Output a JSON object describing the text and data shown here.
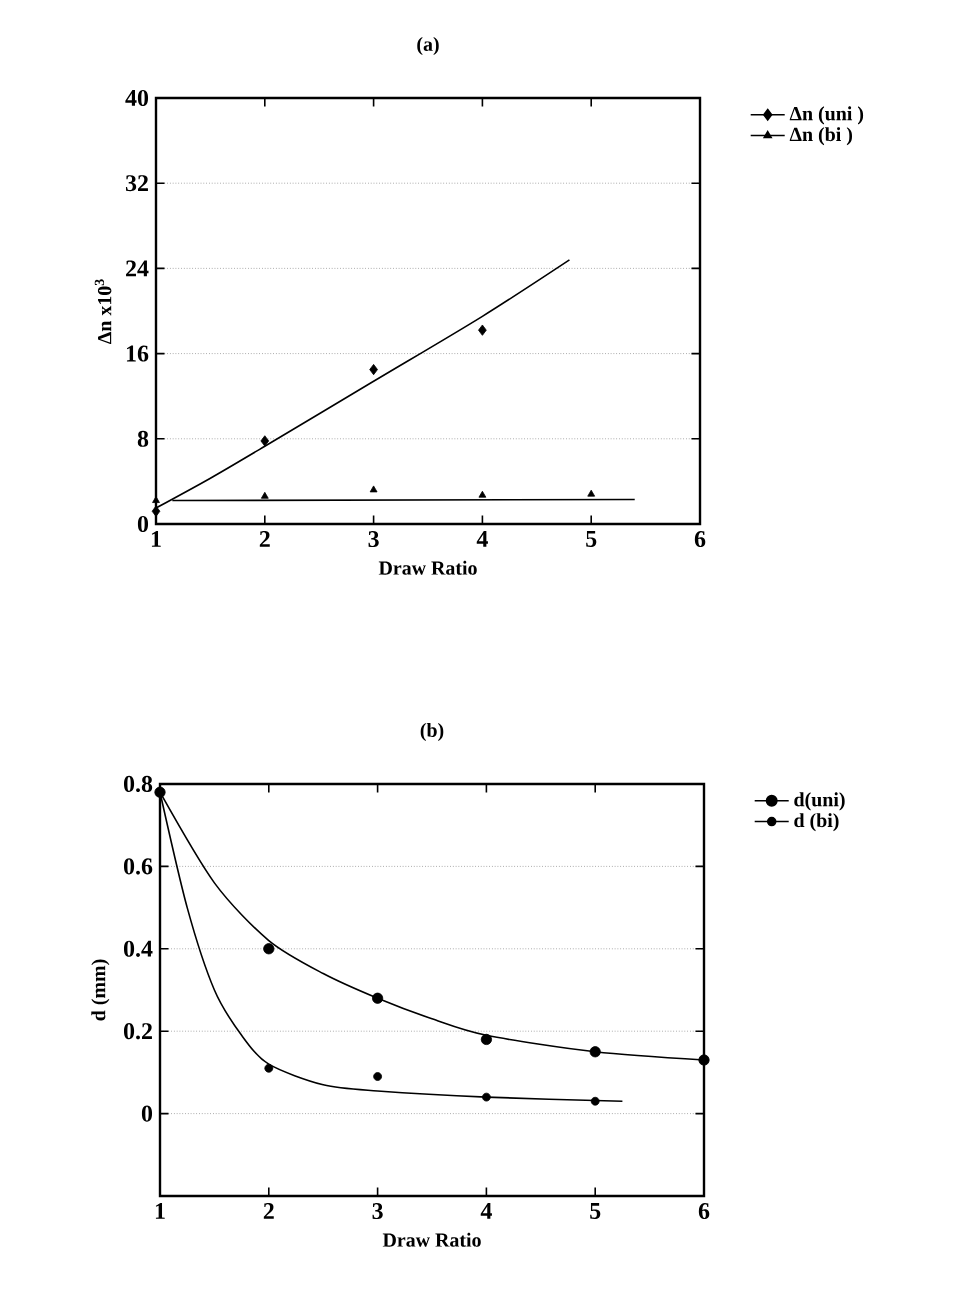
{
  "chart_data": [
    {
      "type": "scatter",
      "title": "(a)",
      "xlabel": "Draw Ratio",
      "ylabel": "Δn x10$^{3}$",
      "xlim": [
        1,
        6
      ],
      "xticks": [
        1,
        2,
        3,
        4,
        5,
        6
      ],
      "ylim": [
        0,
        40
      ],
      "yticks": [
        0,
        8,
        16,
        24,
        32,
        40
      ],
      "grid": "y",
      "legend": "top right",
      "series": [
        {
          "name": "Δn (uni )",
          "marker": "diamond",
          "color": "#000000",
          "x": [
            1,
            2,
            3,
            4
          ],
          "values": [
            1.2,
            7.8,
            14.5,
            18.2
          ]
        },
        {
          "name": "Δn (bi )",
          "marker": "triangle",
          "color": "#000000",
          "x": [
            1,
            2,
            3,
            4,
            5
          ],
          "values": [
            2.2,
            2.6,
            3.2,
            2.7,
            2.8
          ]
        },
        {
          "type": "line",
          "marker": "none",
          "line_style": "solid",
          "color": "#000000",
          "x": [
            1,
            1.5,
            2,
            3,
            4,
            4.8
          ],
          "values": [
            1.5,
            4.3,
            7.3,
            13.4,
            19.5,
            24.8
          ]
        },
        {
          "type": "line",
          "marker": "none",
          "line_style": "solid",
          "color": "#000000",
          "x": [
            1.15,
            5.4
          ],
          "values": [
            2.2,
            2.3
          ]
        }
      ]
    },
    {
      "type": "scatter",
      "title": "(b)",
      "xlabel": "Draw Ratio",
      "ylabel": "d (mm)",
      "xlim": [
        1,
        6
      ],
      "xticks": [
        1,
        2,
        3,
        4,
        5,
        6
      ],
      "ylim": [
        -0.2,
        0.8
      ],
      "yticks": [
        0,
        0.2,
        0.4,
        0.6,
        0.8
      ],
      "grid": "y",
      "legend": "top right",
      "series": [
        {
          "name": "d(uni)",
          "marker": "circle",
          "color": "#000000",
          "x": [
            1,
            2,
            3,
            4,
            5,
            6
          ],
          "values": [
            0.78,
            0.4,
            0.28,
            0.18,
            0.15,
            0.13
          ]
        },
        {
          "name": "d (bi)",
          "marker": "circle",
          "color": "#000000",
          "x": [
            2,
            3,
            4,
            5
          ],
          "values": [
            0.11,
            0.09,
            0.04,
            0.03
          ]
        },
        {
          "type": "line",
          "marker": "none",
          "line_style": "solid",
          "color": "#000000",
          "x": [
            1,
            1.5,
            2,
            2.5,
            3,
            3.5,
            4,
            5,
            6
          ],
          "values": [
            0.78,
            0.56,
            0.42,
            0.34,
            0.28,
            0.23,
            0.19,
            0.15,
            0.13
          ]
        },
        {
          "type": "line",
          "marker": "none",
          "line_style": "solid",
          "color": "#000000",
          "x": [
            1,
            1.25,
            1.5,
            1.75,
            2,
            2.5,
            3,
            4,
            5.25
          ],
          "values": [
            0.78,
            0.5,
            0.3,
            0.19,
            0.12,
            0.07,
            0.055,
            0.04,
            0.03
          ]
        }
      ]
    }
  ]
}
